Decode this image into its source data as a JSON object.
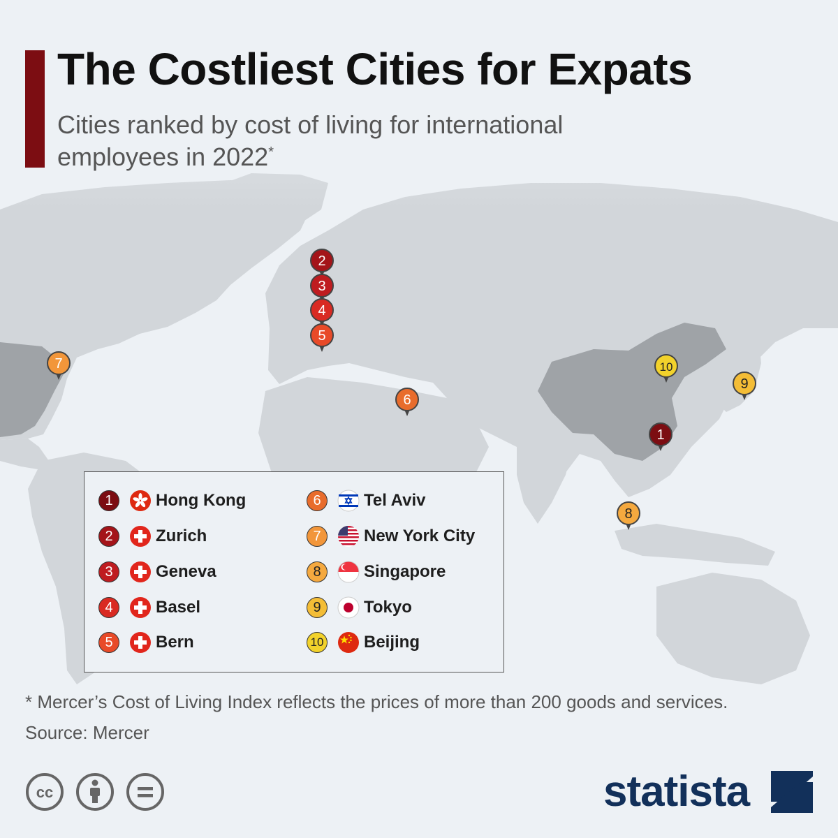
{
  "header": {
    "title": "The Costliest Cities for Expats",
    "subtitle": "Cities ranked by cost of living for international employees in 2022",
    "subtitle_marker": "*"
  },
  "colors": {
    "title_bar": "#7c0d12",
    "land": "#d2d6da",
    "highlighted_country": "#9fa3a7",
    "rank_1": "#7c0d12",
    "rank_2": "#a41419",
    "rank_3": "#bf1c20",
    "rank_4": "#d92a22",
    "rank_5": "#e84a28",
    "rank_6": "#e86c2c",
    "rank_7": "#f2963a",
    "rank_8": "#f5a93f",
    "rank_9": "#f4bd36",
    "rank_10": "#f2d22b",
    "brand": "#12305a"
  },
  "map": {
    "highlighted_countries": [
      "China",
      "United States"
    ],
    "markers": [
      {
        "rank": "1",
        "city": "Hong Kong"
      },
      {
        "rank": "2",
        "city": "Zurich"
      },
      {
        "rank": "3",
        "city": "Geneva"
      },
      {
        "rank": "4",
        "city": "Basel"
      },
      {
        "rank": "5",
        "city": "Bern"
      },
      {
        "rank": "6",
        "city": "Tel Aviv"
      },
      {
        "rank": "7",
        "city": "New York City"
      },
      {
        "rank": "8",
        "city": "Singapore"
      },
      {
        "rank": "9",
        "city": "Tokyo"
      },
      {
        "rank": "10",
        "city": "Beijing"
      }
    ]
  },
  "legend": {
    "items": [
      {
        "rank": "1",
        "city": "Hong Kong",
        "flag": "hong-kong-flag-icon"
      },
      {
        "rank": "2",
        "city": "Zurich",
        "flag": "swiss-flag-icon"
      },
      {
        "rank": "3",
        "city": "Geneva",
        "flag": "swiss-flag-icon"
      },
      {
        "rank": "4",
        "city": "Basel",
        "flag": "swiss-flag-icon"
      },
      {
        "rank": "5",
        "city": "Bern",
        "flag": "swiss-flag-icon"
      },
      {
        "rank": "6",
        "city": "Tel Aviv",
        "flag": "israel-flag-icon"
      },
      {
        "rank": "7",
        "city": "New York City",
        "flag": "usa-flag-icon"
      },
      {
        "rank": "8",
        "city": "Singapore",
        "flag": "singapore-flag-icon"
      },
      {
        "rank": "9",
        "city": "Tokyo",
        "flag": "japan-flag-icon"
      },
      {
        "rank": "10",
        "city": "Beijing",
        "flag": "china-flag-icon"
      }
    ]
  },
  "footer": {
    "footnote": "* Mercer’s Cost of Living Index reflects the prices of more than 200 goods and services.",
    "source": "Source: Mercer",
    "brand": "statista",
    "license_icons": [
      "creative-commons-icon",
      "attribution-icon",
      "no-derivatives-icon"
    ]
  }
}
